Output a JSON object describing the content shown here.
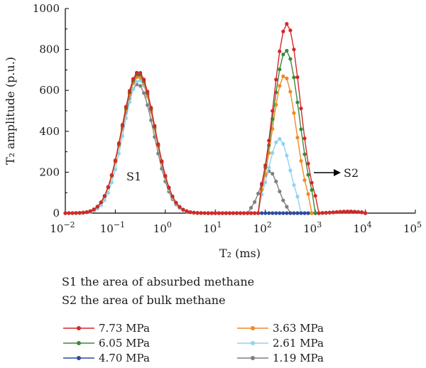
{
  "chart_data": {
    "type": "line",
    "title": "",
    "xlabel": "T₂ (ms)",
    "ylabel": "T₂ amplitude (p.u.)",
    "x_scale": "log",
    "xlim": [
      0.01,
      100000
    ],
    "ylim": [
      0,
      1000
    ],
    "x_ticks": [
      0.01,
      0.1,
      1,
      10,
      100,
      1000,
      10000,
      100000
    ],
    "x_tick_labels": [
      "10−2",
      "10−1",
      "100",
      "101",
      "102",
      "103",
      "104",
      "105"
    ],
    "y_ticks": [
      0,
      200,
      400,
      600,
      800,
      1000
    ],
    "grid": false,
    "legend_position": "bottom",
    "annotations": {
      "s1": "S1",
      "s2": "S2",
      "note_s1": "S1 the area of absurbed methane",
      "note_s2": "S2 the area of bulk methane"
    },
    "series": [
      {
        "name": "7.73 MPa",
        "color": "#d62728",
        "peak1": {
          "center": 0.29,
          "height": 690,
          "width": 0.33
        },
        "peak2": {
          "center": 270,
          "height": 925,
          "width": 0.26,
          "start": 75,
          "end": 1000
        }
      },
      {
        "name": "6.05 MPa",
        "color": "#3a8a3a",
        "peak1": {
          "center": 0.29,
          "height": 682,
          "width": 0.33
        },
        "peak2": {
          "center": 260,
          "height": 795,
          "width": 0.26,
          "start": 75,
          "end": 950
        }
      },
      {
        "name": "4.70 MPa",
        "color": "#2d4a9e",
        "peak1": {
          "center": 0.29,
          "height": 676,
          "width": 0.33
        },
        "peak2": null
      },
      {
        "name": "3.63 MPa",
        "color": "#ef8a22",
        "peak1": {
          "center": 0.29,
          "height": 668,
          "width": 0.33
        },
        "peak2": {
          "center": 240,
          "height": 672,
          "width": 0.24,
          "start": 75,
          "end": 800
        }
      },
      {
        "name": "2.61 MPa",
        "color": "#8fd3ef",
        "peak1": {
          "center": 0.3,
          "height": 650,
          "width": 0.32
        },
        "peak2": {
          "center": 190,
          "height": 363,
          "width": 0.21,
          "start": 75,
          "end": 500
        }
      },
      {
        "name": "1.19 MPa",
        "color": "#7f7f7f",
        "peak1": {
          "center": 0.28,
          "height": 630,
          "width": 0.33
        },
        "peak2": {
          "center": 120,
          "height": 205,
          "width": 0.18,
          "start": 45,
          "end": 300
        }
      }
    ],
    "tail_bump": {
      "center": 4500,
      "height": 8,
      "width": 0.25
    }
  }
}
